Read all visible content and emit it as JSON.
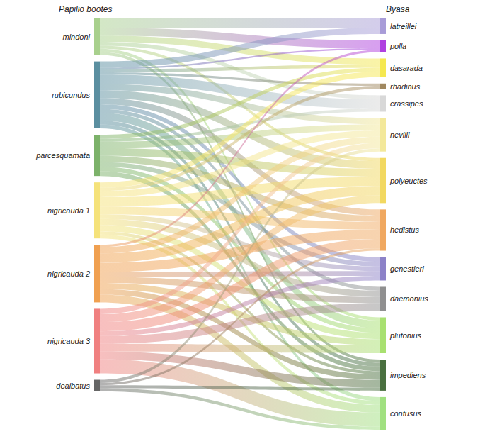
{
  "chart_data": {
    "type": "sankey",
    "left_title": "Papilio bootes",
    "right_title": "Byasa",
    "sources": [
      {
        "name": "mindoni",
        "color": "#a8d08d"
      },
      {
        "name": "rubicundus",
        "color": "#5b8fa0"
      },
      {
        "name": "parcesquamata",
        "color": "#7cb26a"
      },
      {
        "name": "nigricauda 1",
        "color": "#f5e27a"
      },
      {
        "name": "nigricauda 2",
        "color": "#f0a050"
      },
      {
        "name": "nigricauda 3",
        "color": "#f08080"
      },
      {
        "name": "dealbatus",
        "color": "#666666"
      }
    ],
    "targets": [
      {
        "name": "latreillei",
        "color": "#a89cd8"
      },
      {
        "name": "polla",
        "color": "#b040e0"
      },
      {
        "name": "dasarada",
        "color": "#f5e850"
      },
      {
        "name": "rhadinus",
        "color": "#a08860"
      },
      {
        "name": "crassipes",
        "color": "#d8d8d8"
      },
      {
        "name": "nevilli",
        "color": "#f3e89a"
      },
      {
        "name": "polyeuctes",
        "color": "#f2d860"
      },
      {
        "name": "hedistus",
        "color": "#f0a860"
      },
      {
        "name": "genestieri",
        "color": "#8c82c8"
      },
      {
        "name": "daemonius",
        "color": "#909090"
      },
      {
        "name": "plutonius",
        "color": "#a8e070"
      },
      {
        "name": "impediens",
        "color": "#4a7040"
      },
      {
        "name": "confusus",
        "color": "#a0e080"
      }
    ],
    "links": [
      {
        "source": "mindoni",
        "target": "latreillei",
        "value": 12
      },
      {
        "source": "mindoni",
        "target": "polla",
        "value": 10
      },
      {
        "source": "mindoni",
        "target": "dasarada",
        "value": 8
      },
      {
        "source": "mindoni",
        "target": "crassipes",
        "value": 5
      },
      {
        "source": "mindoni",
        "target": "polyeuctes",
        "value": 4
      },
      {
        "source": "mindoni",
        "target": "plutonius",
        "value": 4
      },
      {
        "source": "mindoni",
        "target": "impediens",
        "value": 4
      },
      {
        "source": "rubicundus",
        "target": "latreillei",
        "value": 8
      },
      {
        "source": "rubicundus",
        "target": "polla",
        "value": 2
      },
      {
        "source": "rubicundus",
        "target": "dasarada",
        "value": 4
      },
      {
        "source": "rubicundus",
        "target": "rhadinus",
        "value": 3
      },
      {
        "source": "rubicundus",
        "target": "crassipes",
        "value": 12
      },
      {
        "source": "rubicundus",
        "target": "nevilli",
        "value": 8
      },
      {
        "source": "rubicundus",
        "target": "polyeuctes",
        "value": 10
      },
      {
        "source": "rubicundus",
        "target": "hedistus",
        "value": 8
      },
      {
        "source": "rubicundus",
        "target": "genestieri",
        "value": 6
      },
      {
        "source": "rubicundus",
        "target": "daemonius",
        "value": 5
      },
      {
        "source": "rubicundus",
        "target": "plutonius",
        "value": 10
      },
      {
        "source": "rubicundus",
        "target": "impediens",
        "value": 5
      },
      {
        "source": "rubicundus",
        "target": "confusus",
        "value": 5
      },
      {
        "source": "parcesquamata",
        "target": "dasarada",
        "value": 5
      },
      {
        "source": "parcesquamata",
        "target": "crassipes",
        "value": 4
      },
      {
        "source": "parcesquamata",
        "target": "nevilli",
        "value": 8
      },
      {
        "source": "parcesquamata",
        "target": "polyeuctes",
        "value": 10
      },
      {
        "source": "parcesquamata",
        "target": "hedistus",
        "value": 8
      },
      {
        "source": "parcesquamata",
        "target": "genestieri",
        "value": 6
      },
      {
        "source": "parcesquamata",
        "target": "plutonius",
        "value": 6
      },
      {
        "source": "parcesquamata",
        "target": "impediens",
        "value": 6
      },
      {
        "source": "nigricauda 1",
        "target": "dasarada",
        "value": 7
      },
      {
        "source": "nigricauda 1",
        "target": "rhadinus",
        "value": 4
      },
      {
        "source": "nigricauda 1",
        "target": "nevilli",
        "value": 8
      },
      {
        "source": "nigricauda 1",
        "target": "polyeuctes",
        "value": 12
      },
      {
        "source": "nigricauda 1",
        "target": "hedistus",
        "value": 10
      },
      {
        "source": "nigricauda 1",
        "target": "genestieri",
        "value": 6
      },
      {
        "source": "nigricauda 1",
        "target": "daemonius",
        "value": 8
      },
      {
        "source": "nigricauda 1",
        "target": "plutonius",
        "value": 8
      },
      {
        "source": "nigricauda 1",
        "target": "impediens",
        "value": 4
      },
      {
        "source": "nigricauda 1",
        "target": "confusus",
        "value": 5
      },
      {
        "source": "nigricauda 2",
        "target": "polla",
        "value": 3
      },
      {
        "source": "nigricauda 2",
        "target": "nevilli",
        "value": 8
      },
      {
        "source": "nigricauda 2",
        "target": "polyeuctes",
        "value": 12
      },
      {
        "source": "nigricauda 2",
        "target": "hedistus",
        "value": 12
      },
      {
        "source": "nigricauda 2",
        "target": "genestieri",
        "value": 6
      },
      {
        "source": "nigricauda 2",
        "target": "daemonius",
        "value": 8
      },
      {
        "source": "nigricauda 2",
        "target": "plutonius",
        "value": 8
      },
      {
        "source": "nigricauda 2",
        "target": "impediens",
        "value": 7
      },
      {
        "source": "nigricauda 2",
        "target": "confusus",
        "value": 10
      },
      {
        "source": "nigricauda 3",
        "target": "nevilli",
        "value": 7
      },
      {
        "source": "nigricauda 3",
        "target": "polyeuctes",
        "value": 10
      },
      {
        "source": "nigricauda 3",
        "target": "hedistus",
        "value": 12
      },
      {
        "source": "nigricauda 3",
        "target": "genestieri",
        "value": 6
      },
      {
        "source": "nigricauda 3",
        "target": "daemonius",
        "value": 10
      },
      {
        "source": "nigricauda 3",
        "target": "plutonius",
        "value": 10
      },
      {
        "source": "nigricauda 3",
        "target": "impediens",
        "value": 10
      },
      {
        "source": "nigricauda 3",
        "target": "confusus",
        "value": 18
      },
      {
        "source": "dealbatus",
        "target": "nevilli",
        "value": 4
      },
      {
        "source": "dealbatus",
        "target": "hedistus",
        "value": 3
      },
      {
        "source": "dealbatus",
        "target": "impediens",
        "value": 4
      },
      {
        "source": "dealbatus",
        "target": "confusus",
        "value": 4
      }
    ]
  }
}
